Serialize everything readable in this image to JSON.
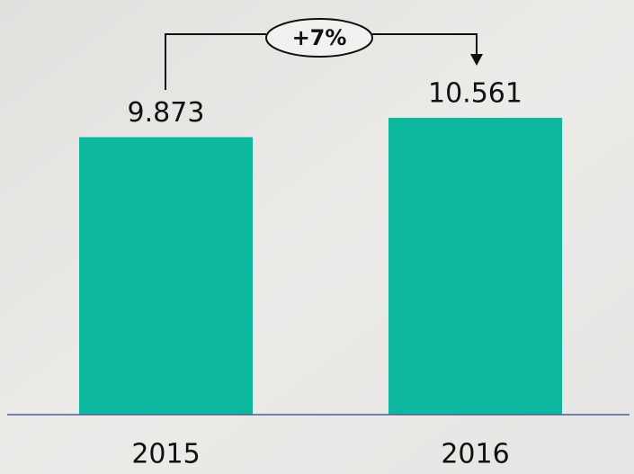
{
  "chart_data": {
    "type": "bar",
    "categories": [
      "2015",
      "2016"
    ],
    "values": [
      9.873,
      10.561
    ],
    "color": "#0db89f",
    "annotation": "+7%"
  }
}
